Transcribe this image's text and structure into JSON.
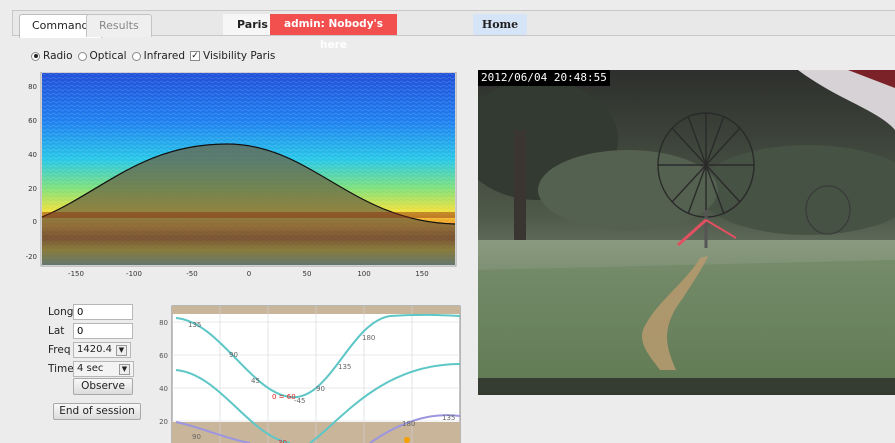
{
  "tabs": {
    "command": "Command",
    "results": "Results"
  },
  "location": "Paris",
  "status": "admin: Nobody's here",
  "home": "Home",
  "options": {
    "radio": "Radio",
    "optical": "Optical",
    "infrared": "Infrared",
    "visibility": "Visibility Paris",
    "selected": "Radio",
    "visibility_checked": true
  },
  "skymap": {
    "y_ticks": [
      "80",
      "60",
      "40",
      "20",
      "0",
      "-20"
    ],
    "x_ticks": [
      "-150",
      "-100",
      "-50",
      "0",
      "50",
      "100",
      "150"
    ]
  },
  "form": {
    "long_label": "Long",
    "long_value": "0",
    "lat_label": "Lat",
    "lat_value": "0",
    "freq_label": "Freq",
    "freq_value": "1420.4",
    "time_label": "Time",
    "time_value": "4 sec",
    "observe": "Observe",
    "end_session": "End of session"
  },
  "plot": {
    "y_ticks": [
      "80",
      "60",
      "40",
      "20"
    ],
    "curve_labels": [
      "135",
      "90",
      "45",
      "90",
      "135",
      "180",
      "-45",
      "0 = 60",
      "180",
      "135",
      "90",
      "30"
    ]
  },
  "webcam": {
    "timestamp": "2012/06/04 20:48:55"
  },
  "colors": {
    "status_bg": "#f24f4f",
    "home_bg": "#d6e4f7",
    "curve": "#5dc6c6",
    "sun_curve": "#9c95e0"
  }
}
